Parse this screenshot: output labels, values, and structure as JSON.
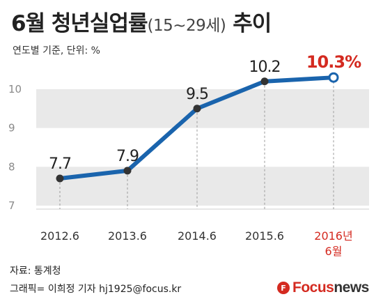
{
  "header": {
    "title_main": "6월 청년실업률",
    "title_paren": "(15~29세)",
    "title_end": "추이",
    "subtitle": "연도별 기준, 단위: %"
  },
  "chart_data": {
    "type": "line",
    "categories": [
      "2012.6",
      "2013.6",
      "2014.6",
      "2015.6",
      "2016년 6월"
    ],
    "values": [
      7.7,
      7.9,
      9.5,
      10.2,
      10.3
    ],
    "data_labels": [
      "7.7",
      "7.9",
      "9.5",
      "10.2",
      "10.3%"
    ],
    "y_ticks": [
      "7",
      "8",
      "9",
      "10"
    ],
    "ylim": [
      6.9,
      10.3
    ],
    "title": "6월 청년실업률(15~29세) 추이",
    "xlabel": "",
    "ylabel": "",
    "series_color": "#1a64ad",
    "highlight_color": "#d42a20",
    "band_color": "#e9e9e9"
  },
  "footer": {
    "source": "자료: 통계청",
    "credit": "그래픽= 이희정 기자 hj1925@focus.kr",
    "logo_focus": "Focus",
    "logo_news": "news",
    "logo_mark": "F"
  }
}
